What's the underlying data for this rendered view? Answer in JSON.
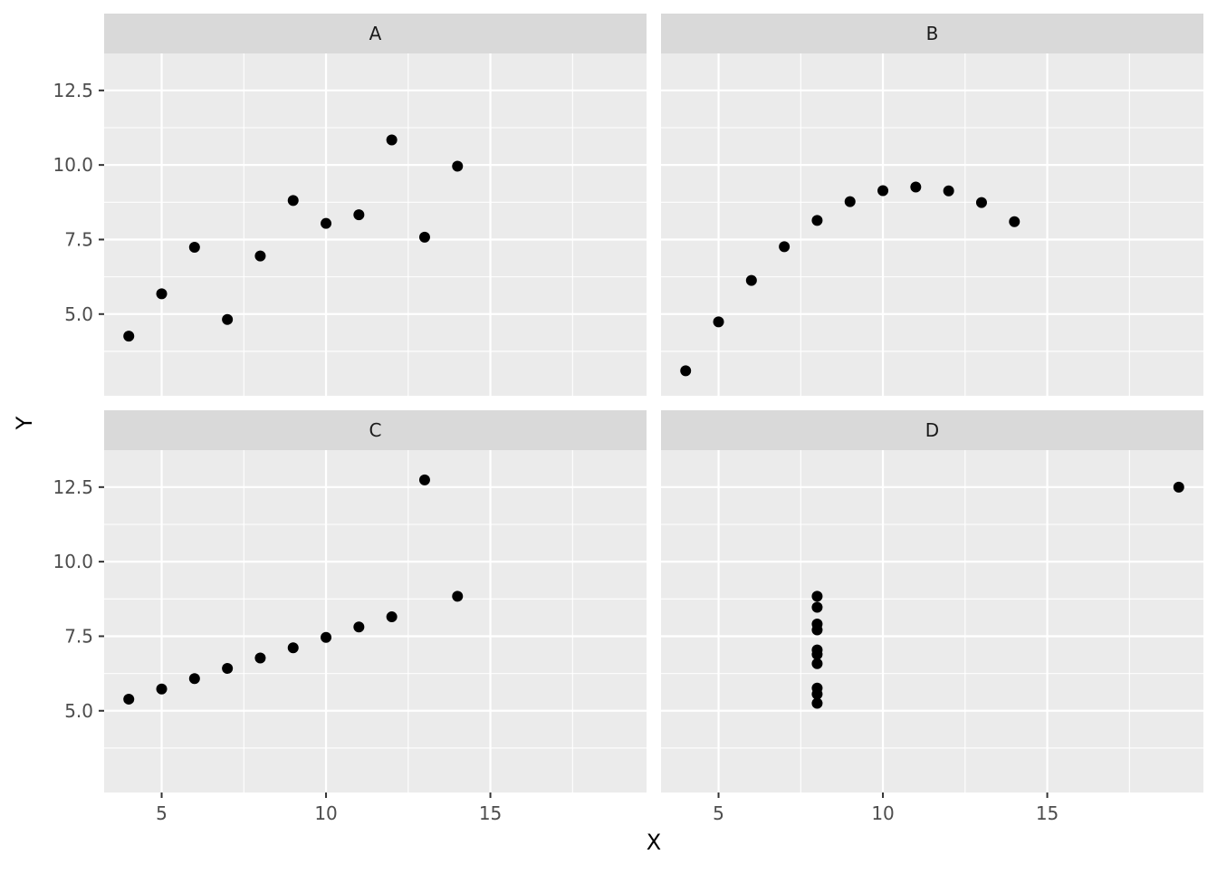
{
  "chart_data": {
    "type": "scatter",
    "facet_layout": "2x2",
    "xlabel": "X",
    "ylabel": "Y",
    "xlim": [
      3.25,
      19.75
    ],
    "ylim": [
      2.26,
      13.74
    ],
    "x_ticks": [
      5,
      10,
      15
    ],
    "x_tick_labels": [
      "5",
      "10",
      "15"
    ],
    "y_ticks": [
      5.0,
      7.5,
      10.0,
      12.5
    ],
    "y_tick_labels": [
      "5.0",
      "7.5",
      "10.0",
      "12.5"
    ],
    "grid": true,
    "colors": {
      "panel_bg": "#ebebeb",
      "strip_bg": "#d9d9d9",
      "grid": "#ffffff",
      "point": "#000000"
    },
    "panels": [
      {
        "label": "A",
        "x": [
          10,
          8,
          13,
          9,
          11,
          14,
          6,
          4,
          12,
          7,
          5
        ],
        "y": [
          8.04,
          6.95,
          7.58,
          8.81,
          8.33,
          9.96,
          7.24,
          4.26,
          10.84,
          4.82,
          5.68
        ]
      },
      {
        "label": "B",
        "x": [
          10,
          8,
          13,
          9,
          11,
          14,
          6,
          4,
          12,
          7,
          5
        ],
        "y": [
          9.14,
          8.14,
          8.74,
          8.77,
          9.26,
          8.1,
          6.13,
          3.1,
          9.13,
          7.26,
          4.74
        ]
      },
      {
        "label": "C",
        "x": [
          10,
          8,
          13,
          9,
          11,
          14,
          6,
          4,
          12,
          7,
          5
        ],
        "y": [
          7.46,
          6.77,
          12.74,
          7.11,
          7.81,
          8.84,
          6.08,
          5.39,
          8.15,
          6.42,
          5.73
        ]
      },
      {
        "label": "D",
        "x": [
          8,
          8,
          8,
          8,
          8,
          8,
          8,
          19,
          8,
          8,
          8
        ],
        "y": [
          6.58,
          5.76,
          7.71,
          8.84,
          8.47,
          7.04,
          5.25,
          12.5,
          5.56,
          7.91,
          6.89
        ]
      }
    ]
  }
}
